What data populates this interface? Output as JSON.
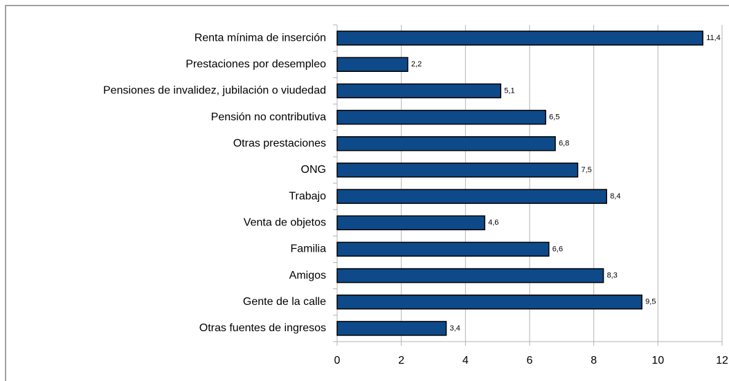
{
  "chart_data": {
    "type": "bar",
    "orientation": "horizontal",
    "categories": [
      "Renta mínima de inserción",
      "Prestaciones por desempleo",
      "Pensiones de invalidez, jubilación o viudedad",
      "Pensión no contributiva",
      "Otras prestaciones",
      "ONG",
      "Trabajo",
      "Venta de objetos",
      "Familia",
      "Amigos",
      "Gente de la calle",
      "Otras fuentes de ingresos"
    ],
    "values": [
      11.4,
      2.2,
      5.1,
      6.5,
      6.8,
      7.5,
      8.4,
      4.6,
      6.6,
      8.3,
      9.5,
      3.4
    ],
    "value_labels": [
      "11,4",
      "2,2",
      "5,1",
      "6,5",
      "6,8",
      "7,5",
      "8,4",
      "4,6",
      "6,6",
      "8,3",
      "9,5",
      "3,4"
    ],
    "color": "#0e4a8a",
    "xlim": [
      0,
      12
    ],
    "xticks": [
      0,
      2,
      4,
      6,
      8,
      10,
      12
    ],
    "grid": true
  }
}
